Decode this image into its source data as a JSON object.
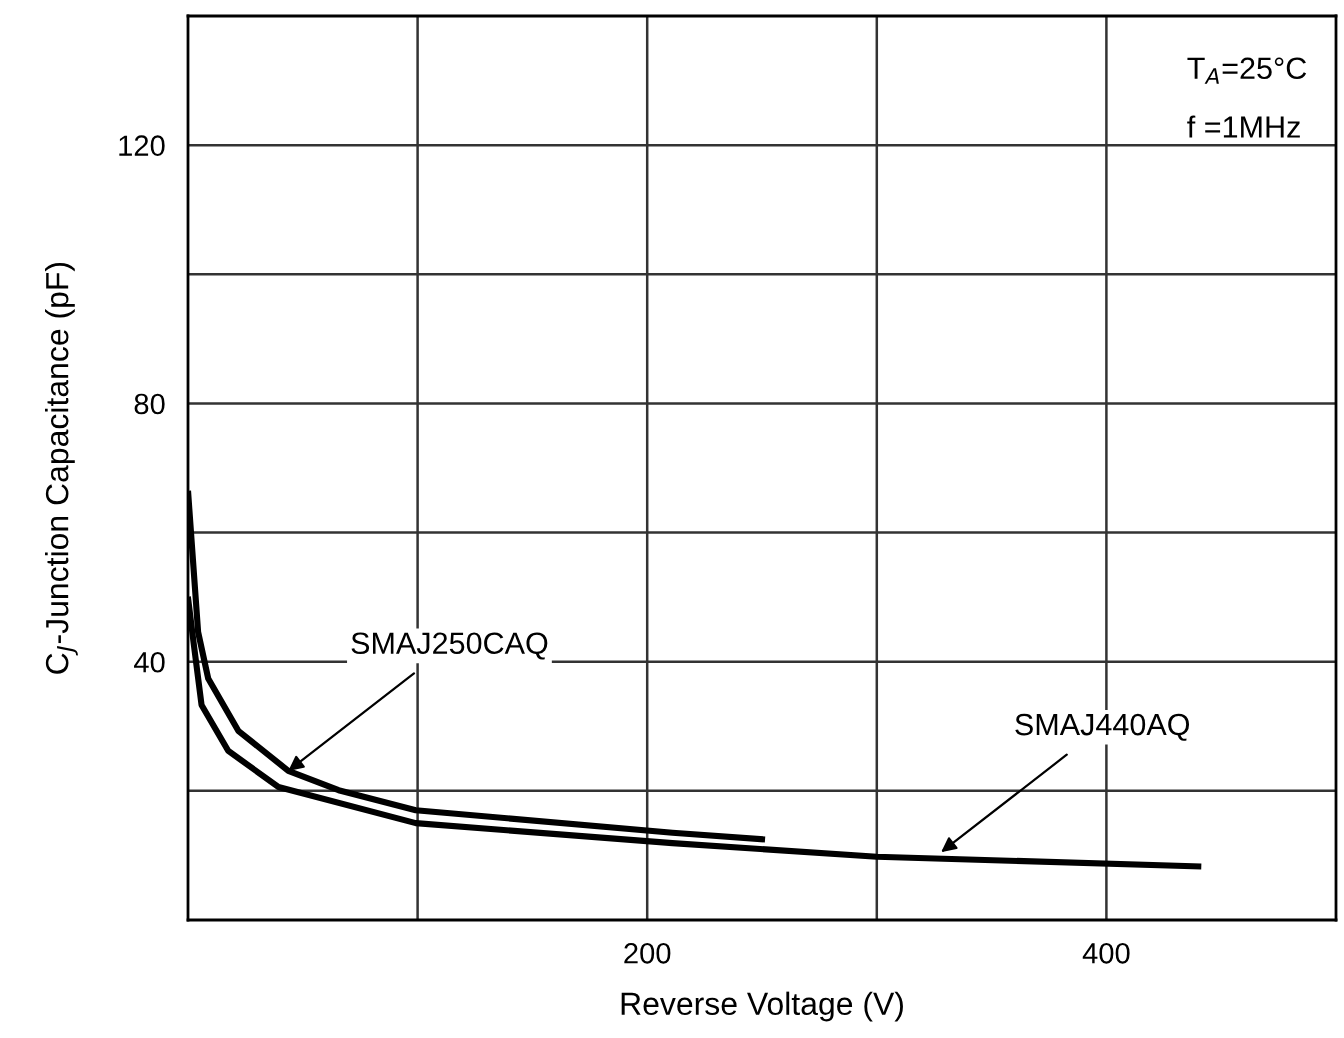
{
  "chart_data": {
    "type": "line",
    "xlabel": "Reverse Voltage (V)",
    "ylabel": "C$_{J}$-Junction Capacitance (pF)",
    "xlim": [
      0,
      500
    ],
    "ylim": [
      0,
      140
    ],
    "xticks": [
      {
        "value": 100,
        "label": null
      },
      200,
      {
        "value": 300,
        "label": null
      },
      400
    ],
    "yticks": [
      {
        "value": 20,
        "label": null
      },
      40,
      {
        "value": 60,
        "label": null
      },
      80,
      {
        "value": 100,
        "label": null
      },
      120
    ],
    "grid": true,
    "marker": "none",
    "line_style": "solid",
    "series": [
      {
        "color": "#000000",
        "x": [
          0.1,
          4.4,
          8.8,
          21.9,
          43.7,
          65.6,
          99.2,
          211,
          250
        ],
        "values": [
          66,
          44.6,
          37.4,
          29.3,
          23.1,
          20.1,
          17.0,
          13.5,
          12.5
        ]
      },
      {
        "color": "#000000",
        "x": [
          0.1,
          2.6,
          5.9,
          17.5,
          39.4,
          99.2,
          211,
          300,
          440
        ],
        "values": [
          49.6,
          42.5,
          33.3,
          26.2,
          20.6,
          15.0,
          11.9,
          9.8,
          8.3
        ]
      }
    ],
    "annotations": [
      {
        "text": "SMAJ250CAQ",
        "x": 43.7,
        "y": 23.1
      },
      {
        "text": "SMAJ440AQ",
        "x": 328,
        "y": 10.5
      },
      "T$_{A}$=25°C",
      "f =1MHz"
    ]
  }
}
